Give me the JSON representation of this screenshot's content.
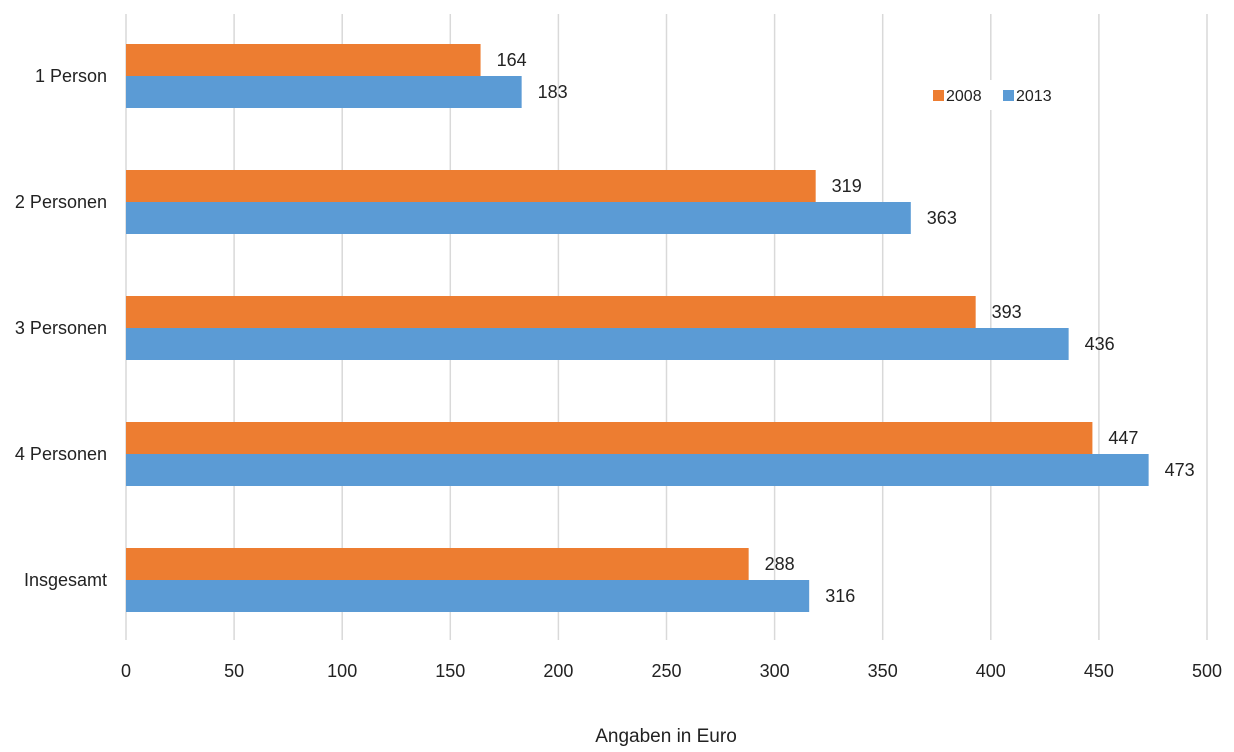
{
  "chart_data": {
    "type": "bar",
    "orientation": "horizontal",
    "categories": [
      "1 Person",
      "2 Personen",
      "3 Personen",
      "4 Personen",
      "Insgesamt"
    ],
    "series": [
      {
        "name": "2008",
        "color": "#ED7D31",
        "values": [
          164,
          319,
          393,
          447,
          288
        ]
      },
      {
        "name": "2013",
        "color": "#5B9BD5",
        "values": [
          183,
          363,
          436,
          473,
          316
        ]
      }
    ],
    "xlim": [
      0,
      500
    ],
    "xticks": [
      0,
      50,
      100,
      150,
      200,
      250,
      300,
      350,
      400,
      450,
      500
    ],
    "xlabel": "Angaben in Euro",
    "ylabel": "",
    "title": "",
    "grid": "vertical",
    "legend_position": "top-right",
    "gridline_color": "#D9D9D9"
  }
}
